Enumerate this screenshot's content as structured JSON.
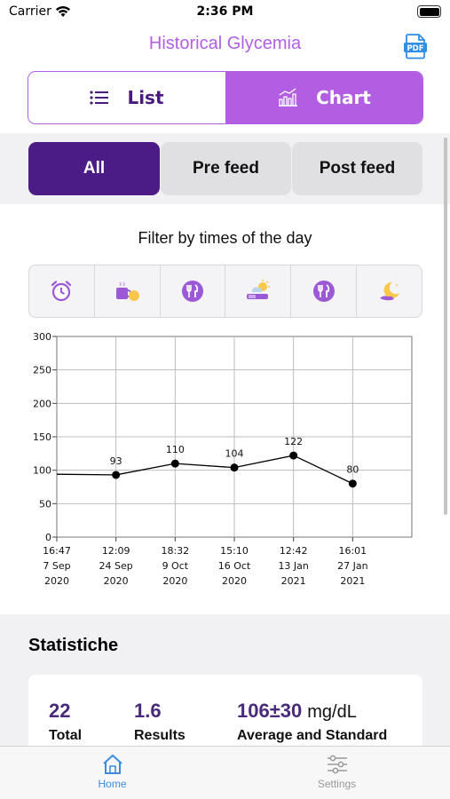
{
  "status_bar": {
    "carrier": "Carrier",
    "time": "2:36 PM"
  },
  "header": {
    "title": "Historical Glycemia",
    "pdf_label": "PDF"
  },
  "view_toggle": {
    "list_label": "List",
    "chart_label": "Chart",
    "selected": "Chart"
  },
  "feed_filter": {
    "all": "All",
    "pre": "Pre feed",
    "post": "Post feed",
    "selected": "All"
  },
  "time_filter": {
    "label": "Filter by times of the day",
    "icons": [
      "alarm-clock-icon",
      "breakfast-icon",
      "cutlery-icon",
      "afternoon-snack-icon",
      "cutlery-icon",
      "night-moon-icon"
    ]
  },
  "chart_data": {
    "type": "line",
    "ylim": [
      0,
      300
    ],
    "yticks": [
      0,
      50,
      100,
      150,
      200,
      250,
      300
    ],
    "categories": [
      [
        "16:47",
        "7 Sep",
        "2020"
      ],
      [
        "12:09",
        "24 Sep",
        "2020"
      ],
      [
        "18:32",
        "9 Oct",
        "2020"
      ],
      [
        "15:10",
        "16 Oct",
        "2020"
      ],
      [
        "12:42",
        "13 Jan",
        "2021"
      ],
      [
        "16:01",
        "27 Jan",
        "2021"
      ]
    ],
    "values": [
      null,
      93,
      110,
      104,
      122,
      80
    ],
    "line_start_value": 94,
    "grid": true,
    "colors": {
      "line": "#000000",
      "grid": "#bdbdbd"
    }
  },
  "statistics": {
    "title": "Statistiche",
    "total_value": "22",
    "total_label": "Total",
    "results_value": "1.6",
    "results_label": "Results",
    "avg_value": "106±30",
    "avg_unit": "mg/dL",
    "avg_label": "Average and Standard"
  },
  "tabbar": {
    "home": "Home",
    "settings": "Settings",
    "selected": "Home"
  },
  "colors": {
    "accent": "#b25ee3",
    "dark_purple": "#4c1c86",
    "tab_active": "#3d8be0"
  }
}
